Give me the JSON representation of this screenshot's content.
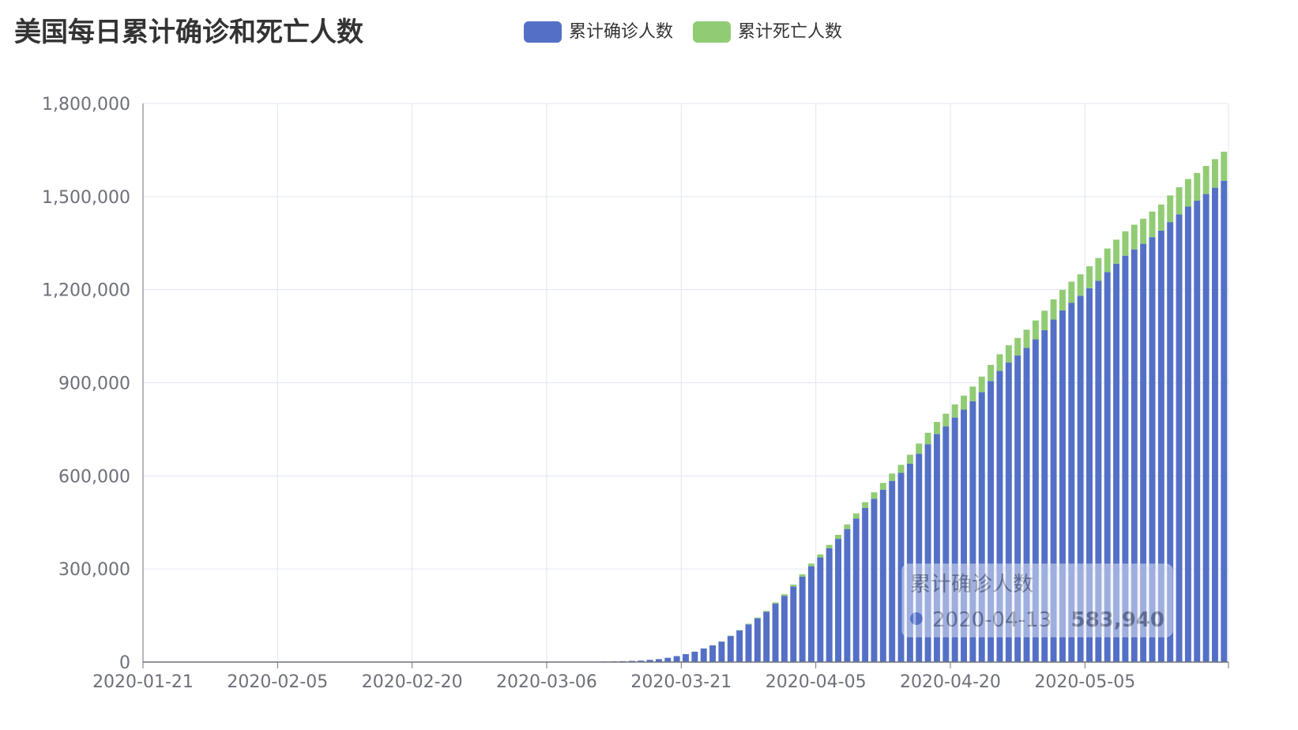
{
  "chart_data": {
    "type": "bar",
    "stacked": true,
    "title": "美国每日累计确诊和死亡人数",
    "legend": {
      "placement": "top-center"
    },
    "x_start": "2020-01-21",
    "x_end": "2020-05-21",
    "x_ticks": [
      "2020-01-21",
      "2020-02-05",
      "2020-02-20",
      "2020-03-06",
      "2020-03-21",
      "2020-04-05",
      "2020-04-20",
      "2020-05-05"
    ],
    "y_ticks": [
      "0",
      "300,000",
      "600,000",
      "900,000",
      "1,200,000",
      "1,500,000",
      "1,800,000"
    ],
    "ylim": [
      0,
      1800000
    ],
    "grid": true,
    "series": [
      {
        "name": "累计确诊人数",
        "color": "#5470c6",
        "points": [
          {
            "date": "2020-03-01",
            "value": 100
          },
          {
            "date": "2020-03-05",
            "value": 230
          },
          {
            "date": "2020-03-08",
            "value": 550
          },
          {
            "date": "2020-03-10",
            "value": 1000
          },
          {
            "date": "2020-03-12",
            "value": 1700
          },
          {
            "date": "2020-03-14",
            "value": 2900
          },
          {
            "date": "2020-03-16",
            "value": 4600
          },
          {
            "date": "2020-03-18",
            "value": 9400
          },
          {
            "date": "2020-03-19",
            "value": 13700
          },
          {
            "date": "2020-03-20",
            "value": 19100
          },
          {
            "date": "2020-03-21",
            "value": 25500
          },
          {
            "date": "2020-03-22",
            "value": 33300
          },
          {
            "date": "2020-03-23",
            "value": 43800
          },
          {
            "date": "2020-03-24",
            "value": 53700
          },
          {
            "date": "2020-03-25",
            "value": 65800
          },
          {
            "date": "2020-03-26",
            "value": 83800
          },
          {
            "date": "2020-03-27",
            "value": 101700
          },
          {
            "date": "2020-03-28",
            "value": 121500
          },
          {
            "date": "2020-03-29",
            "value": 140900
          },
          {
            "date": "2020-03-30",
            "value": 161800
          },
          {
            "date": "2020-03-31",
            "value": 188200
          },
          {
            "date": "2020-04-01",
            "value": 213400
          },
          {
            "date": "2020-04-02",
            "value": 243600
          },
          {
            "date": "2020-04-03",
            "value": 275600
          },
          {
            "date": "2020-04-04",
            "value": 308900
          },
          {
            "date": "2020-04-05",
            "value": 337100
          },
          {
            "date": "2020-04-06",
            "value": 366700
          },
          {
            "date": "2020-04-07",
            "value": 397000
          },
          {
            "date": "2020-04-08",
            "value": 428700
          },
          {
            "date": "2020-04-09",
            "value": 462500
          },
          {
            "date": "2020-04-10",
            "value": 496500
          },
          {
            "date": "2020-04-11",
            "value": 526400
          },
          {
            "date": "2020-04-12",
            "value": 555300
          },
          {
            "date": "2020-04-13",
            "value": 583940
          },
          {
            "date": "2020-04-14",
            "value": 609700
          },
          {
            "date": "2020-04-15",
            "value": 639700
          },
          {
            "date": "2020-04-16",
            "value": 671400
          },
          {
            "date": "2020-04-17",
            "value": 702200
          },
          {
            "date": "2020-04-18",
            "value": 735100
          },
          {
            "date": "2020-04-19",
            "value": 759700
          },
          {
            "date": "2020-04-20",
            "value": 787800
          },
          {
            "date": "2020-04-21",
            "value": 813500
          },
          {
            "date": "2020-04-22",
            "value": 840700
          },
          {
            "date": "2020-04-23",
            "value": 870100
          },
          {
            "date": "2020-04-24",
            "value": 905800
          },
          {
            "date": "2020-04-25",
            "value": 938100
          },
          {
            "date": "2020-04-26",
            "value": 965700
          },
          {
            "date": "2020-04-27",
            "value": 988200
          },
          {
            "date": "2020-04-28",
            "value": 1012600
          },
          {
            "date": "2020-04-29",
            "value": 1039900
          },
          {
            "date": "2020-04-30",
            "value": 1069400
          },
          {
            "date": "2020-05-01",
            "value": 1103800
          },
          {
            "date": "2020-05-02",
            "value": 1133100
          },
          {
            "date": "2020-05-03",
            "value": 1158000
          },
          {
            "date": "2020-05-04",
            "value": 1180600
          },
          {
            "date": "2020-05-05",
            "value": 1204400
          },
          {
            "date": "2020-05-06",
            "value": 1228600
          },
          {
            "date": "2020-05-07",
            "value": 1257000
          },
          {
            "date": "2020-05-08",
            "value": 1283900
          },
          {
            "date": "2020-05-09",
            "value": 1309500
          },
          {
            "date": "2020-05-10",
            "value": 1329800
          },
          {
            "date": "2020-05-11",
            "value": 1347900
          },
          {
            "date": "2020-05-12",
            "value": 1369400
          },
          {
            "date": "2020-05-13",
            "value": 1390400
          },
          {
            "date": "2020-05-14",
            "value": 1417800
          },
          {
            "date": "2020-05-15",
            "value": 1442800
          },
          {
            "date": "2020-05-16",
            "value": 1467800
          },
          {
            "date": "2020-05-17",
            "value": 1486800
          },
          {
            "date": "2020-05-18",
            "value": 1508300
          },
          {
            "date": "2020-05-19",
            "value": 1528600
          },
          {
            "date": "2020-05-20",
            "value": 1551100
          }
        ]
      },
      {
        "name": "累计死亡人数",
        "color": "#91cc75",
        "points": [
          {
            "date": "2020-03-21",
            "value": 320
          },
          {
            "date": "2020-03-22",
            "value": 430
          },
          {
            "date": "2020-03-23",
            "value": 560
          },
          {
            "date": "2020-03-24",
            "value": 710
          },
          {
            "date": "2020-03-25",
            "value": 950
          },
          {
            "date": "2020-03-26",
            "value": 1220
          },
          {
            "date": "2020-03-27",
            "value": 1600
          },
          {
            "date": "2020-03-28",
            "value": 2050
          },
          {
            "date": "2020-03-29",
            "value": 2500
          },
          {
            "date": "2020-03-30",
            "value": 3000
          },
          {
            "date": "2020-03-31",
            "value": 4000
          },
          {
            "date": "2020-04-01",
            "value": 5100
          },
          {
            "date": "2020-04-02",
            "value": 6100
          },
          {
            "date": "2020-04-03",
            "value": 7200
          },
          {
            "date": "2020-04-04",
            "value": 8500
          },
          {
            "date": "2020-04-05",
            "value": 9600
          },
          {
            "date": "2020-04-06",
            "value": 10900
          },
          {
            "date": "2020-04-07",
            "value": 12900
          },
          {
            "date": "2020-04-08",
            "value": 14800
          },
          {
            "date": "2020-04-09",
            "value": 16700
          },
          {
            "date": "2020-04-10",
            "value": 18700
          },
          {
            "date": "2020-04-11",
            "value": 20600
          },
          {
            "date": "2020-04-12",
            "value": 22100
          },
          {
            "date": "2020-04-13",
            "value": 23600
          },
          {
            "date": "2020-04-14",
            "value": 25900
          },
          {
            "date": "2020-04-15",
            "value": 28400
          },
          {
            "date": "2020-04-16",
            "value": 32900
          },
          {
            "date": "2020-04-17",
            "value": 36800
          },
          {
            "date": "2020-04-18",
            "value": 38700
          },
          {
            "date": "2020-04-19",
            "value": 40600
          },
          {
            "date": "2020-04-20",
            "value": 42500
          },
          {
            "date": "2020-04-21",
            "value": 45100
          },
          {
            "date": "2020-04-22",
            "value": 47100
          },
          {
            "date": "2020-04-23",
            "value": 49800
          },
          {
            "date": "2020-04-24",
            "value": 51900
          },
          {
            "date": "2020-04-25",
            "value": 53800
          },
          {
            "date": "2020-04-26",
            "value": 55000
          },
          {
            "date": "2020-04-27",
            "value": 56300
          },
          {
            "date": "2020-04-28",
            "value": 58400
          },
          {
            "date": "2020-04-29",
            "value": 60900
          },
          {
            "date": "2020-04-30",
            "value": 62900
          },
          {
            "date": "2020-05-01",
            "value": 64800
          },
          {
            "date": "2020-05-02",
            "value": 66400
          },
          {
            "date": "2020-05-03",
            "value": 67700
          },
          {
            "date": "2020-05-04",
            "value": 68900
          },
          {
            "date": "2020-05-05",
            "value": 71000
          },
          {
            "date": "2020-05-06",
            "value": 73400
          },
          {
            "date": "2020-05-07",
            "value": 75700
          },
          {
            "date": "2020-05-08",
            "value": 77200
          },
          {
            "date": "2020-05-09",
            "value": 78800
          },
          {
            "date": "2020-05-10",
            "value": 79600
          },
          {
            "date": "2020-05-11",
            "value": 80700
          },
          {
            "date": "2020-05-12",
            "value": 82400
          },
          {
            "date": "2020-05-13",
            "value": 84100
          },
          {
            "date": "2020-05-14",
            "value": 85900
          },
          {
            "date": "2020-05-15",
            "value": 87500
          },
          {
            "date": "2020-05-16",
            "value": 88800
          },
          {
            "date": "2020-05-17",
            "value": 89600
          },
          {
            "date": "2020-05-18",
            "value": 90500
          },
          {
            "date": "2020-05-19",
            "value": 92000
          },
          {
            "date": "2020-05-20",
            "value": 93400
          }
        ]
      }
    ],
    "tooltip": {
      "series_name": "累计确诊人数",
      "date": "2020-04-13",
      "value": "583,940"
    }
  }
}
